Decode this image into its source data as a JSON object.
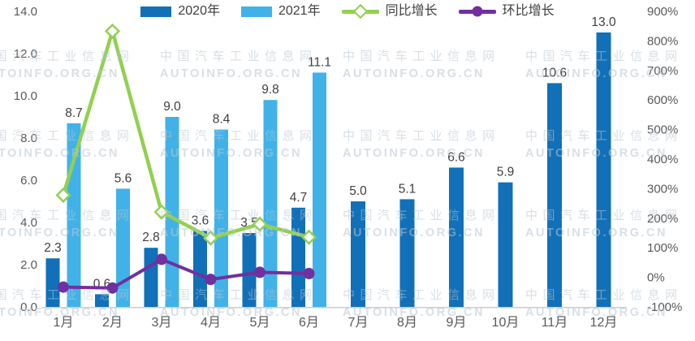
{
  "legend": {
    "items": [
      "2020年",
      "2021年",
      "同比增长",
      "环比增长"
    ]
  },
  "watermark": {
    "line1": "中国汽车工业信息网",
    "line2": "AUTOINFO.ORG.CN",
    "color": "#b9c6d0"
  },
  "chart_data": {
    "type": "combo-bar-line",
    "categories": [
      "1月",
      "2月",
      "3月",
      "4月",
      "5月",
      "6月",
      "7月",
      "8月",
      "9月",
      "10月",
      "11月",
      "12月"
    ],
    "left_axis": {
      "min": 0,
      "max": 14,
      "step": 2,
      "tick_labels": [
        "0.0",
        "2.0",
        "4.0",
        "6.0",
        "8.0",
        "10.0",
        "12.0",
        "14.0"
      ]
    },
    "right_axis": {
      "min": -100,
      "max": 900,
      "step": 100,
      "tick_labels": [
        "-100%",
        "0%",
        "100%",
        "200%",
        "300%",
        "400%",
        "500%",
        "600%",
        "700%",
        "800%",
        "900%"
      ]
    },
    "grid": false,
    "legend_position": "top-center",
    "series": [
      {
        "name": "2020年",
        "type": "bar",
        "axis": "left",
        "color": "#1170b8",
        "values": [
          2.3,
          0.6,
          2.8,
          3.6,
          3.5,
          4.7,
          5.0,
          5.1,
          6.6,
          5.9,
          10.6,
          13.0
        ],
        "labels": [
          "2.3",
          "0.6",
          "2.8",
          "3.6",
          "3.5",
          "4.7",
          "5.0",
          "5.1",
          "6.6",
          "5.9",
          "10.6",
          "13.0"
        ]
      },
      {
        "name": "2021年",
        "type": "bar",
        "axis": "left",
        "color": "#41b2e8",
        "values": [
          8.7,
          5.6,
          9.0,
          8.4,
          9.8,
          11.1,
          null,
          null,
          null,
          null,
          null,
          null
        ],
        "labels": [
          "8.7",
          "5.6",
          "9.0",
          "8.4",
          "9.8",
          "11.1",
          null,
          null,
          null,
          null,
          null,
          null
        ]
      },
      {
        "name": "同比增长",
        "type": "line",
        "axis": "right",
        "color": "#92d050",
        "marker": "diamond",
        "values": [
          278,
          833,
          221,
          133,
          180,
          136,
          null,
          null,
          null,
          null,
          null,
          null
        ]
      },
      {
        "name": "环比增长",
        "type": "line",
        "axis": "right",
        "color": "#7030a0",
        "marker": "circle",
        "values": [
          -33,
          -36,
          61,
          -7,
          17,
          13,
          null,
          null,
          null,
          null,
          null,
          null
        ]
      }
    ]
  }
}
